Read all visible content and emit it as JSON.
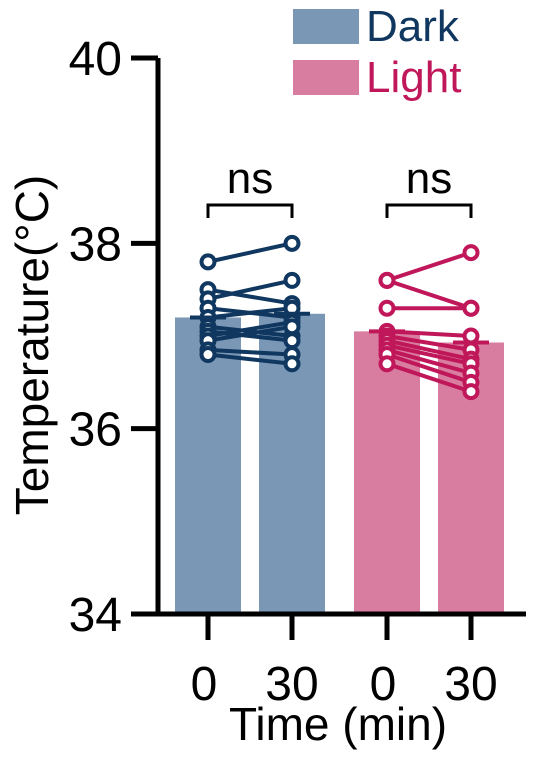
{
  "chart_data": {
    "type": "bar",
    "xlabel": "Time (min)",
    "ylabel": "Temperature(°C)",
    "ylim": [
      34,
      40
    ],
    "yticks": [
      "34",
      "36",
      "38",
      "40"
    ],
    "yticks_values": [
      34,
      36,
      38,
      40
    ],
    "legend": {
      "placement": "top-right"
    },
    "groups": [
      {
        "name": "Dark",
        "bar_color": "#7a97b5",
        "line_color": "#10375f",
        "significance": "ns",
        "timepoints": [
          "0",
          "30"
        ],
        "bar_values": [
          37.2,
          37.24
        ],
        "subject_pairs": [
          [
            37.8,
            38.0
          ],
          [
            37.5,
            37.35
          ],
          [
            37.4,
            37.6
          ],
          [
            37.3,
            37.2
          ],
          [
            37.2,
            37.3
          ],
          [
            37.1,
            37.0
          ],
          [
            37.05,
            36.95
          ],
          [
            37.0,
            37.15
          ],
          [
            36.95,
            37.1
          ],
          [
            36.85,
            36.8
          ],
          [
            36.8,
            36.7
          ]
        ]
      },
      {
        "name": "Light",
        "bar_color": "#d97da0",
        "line_color": "#c0175a",
        "significance": "ns",
        "timepoints": [
          "0",
          "30"
        ],
        "bar_values": [
          37.05,
          36.93
        ],
        "subject_pairs": [
          [
            37.6,
            37.9
          ],
          [
            37.6,
            37.3
          ],
          [
            37.3,
            37.3
          ],
          [
            37.05,
            37.0
          ],
          [
            37.0,
            36.85
          ],
          [
            36.95,
            36.75
          ],
          [
            36.9,
            36.7
          ],
          [
            36.85,
            36.6
          ],
          [
            36.8,
            36.5
          ],
          [
            36.7,
            36.4
          ]
        ]
      }
    ]
  }
}
